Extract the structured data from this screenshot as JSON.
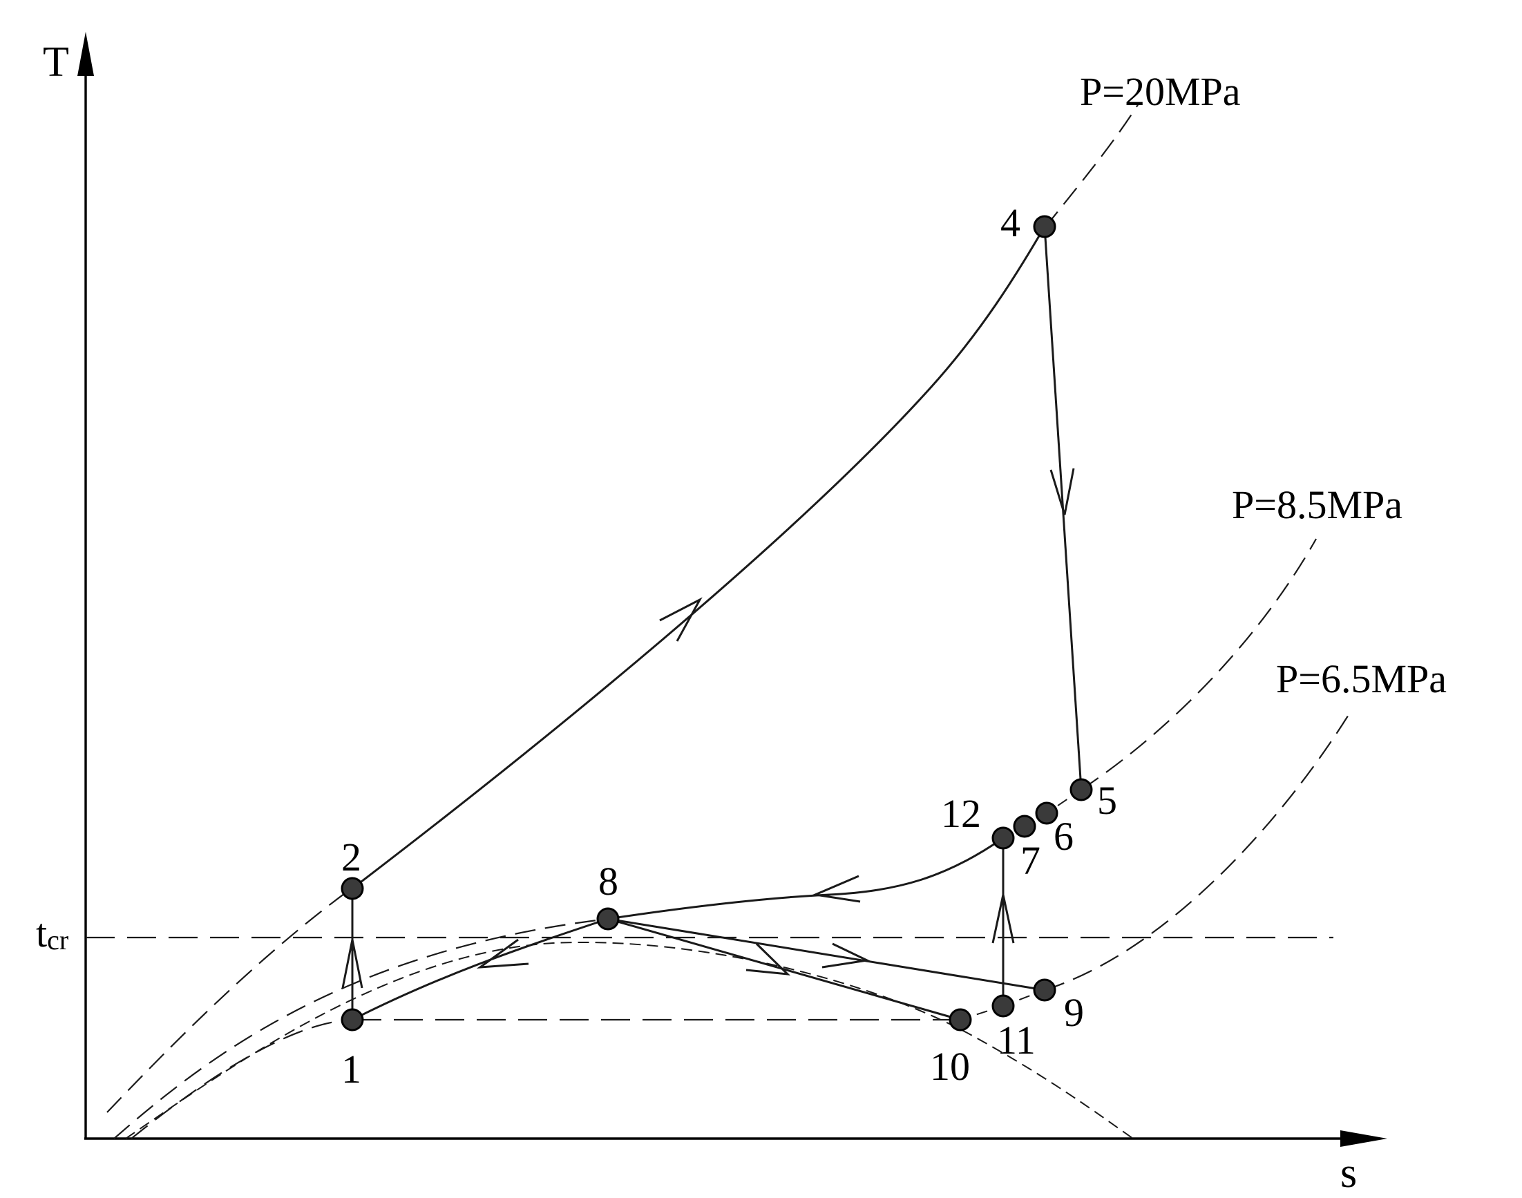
{
  "axes": {
    "x_label": "s",
    "y_label": "T"
  },
  "critical_temperature": {
    "main": "t",
    "subscript": "cr"
  },
  "isobars": [
    {
      "label": "P=20MPa"
    },
    {
      "label": "P=8.5MPa"
    },
    {
      "label": "P=6.5MPa"
    }
  ],
  "state_points": {
    "p1": "1",
    "p2": "2",
    "p4": "4",
    "p5": "5",
    "p6": "6",
    "p7": "7",
    "p8": "8",
    "p9": "9",
    "p10": "10",
    "p11": "11",
    "p12": "12"
  }
}
